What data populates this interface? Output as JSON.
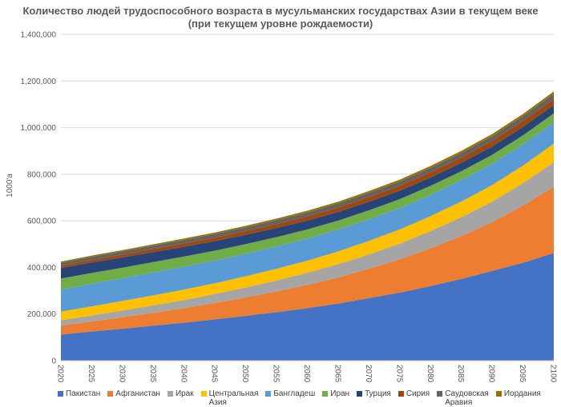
{
  "chart_data": {
    "type": "area",
    "stacked": true,
    "title": "Количество людей трудоспособного возраста в мусульманских государствах Азии в текущем веке",
    "subtitle": "(при текущем уровне рождаемости)",
    "xlabel": "",
    "ylabel": "1000'а",
    "ylim": [
      0,
      1400000
    ],
    "yticks": [
      "0",
      "200,000",
      "400,000",
      "600,000",
      "800,000",
      "1,000,000",
      "1,200,000",
      "1,400,000"
    ],
    "grid": true,
    "legend_position": "bottom",
    "x": [
      2020,
      2025,
      2030,
      2035,
      2040,
      2045,
      2050,
      2055,
      2060,
      2065,
      2070,
      2075,
      2080,
      2085,
      2090,
      2095,
      2100
    ],
    "series": [
      {
        "name": "Пакистан",
        "color": "#4472C4",
        "values": [
          112000,
          125000,
          137000,
          150000,
          163000,
          177000,
          192000,
          208000,
          225000,
          245000,
          268000,
          292000,
          320000,
          351000,
          385000,
          420000,
          462000
        ]
      },
      {
        "name": "Афганистан",
        "color": "#ED7D31",
        "values": [
          38000,
          43000,
          49000,
          55000,
          62000,
          70000,
          79000,
          89000,
          100000,
          112000,
          126000,
          143000,
          162000,
          184000,
          209000,
          246000,
          284000
        ]
      },
      {
        "name": "Ирак",
        "color": "#A5A5A5",
        "values": [
          23000,
          26000,
          29000,
          32000,
          35000,
          39000,
          43000,
          47000,
          52000,
          57000,
          62000,
          67000,
          74000,
          81000,
          88000,
          96000,
          105000
        ]
      },
      {
        "name": "Центральная Азия",
        "color": "#FFC000",
        "values": [
          37000,
          39000,
          41000,
          43000,
          45000,
          46000,
          48000,
          50000,
          52000,
          55000,
          58000,
          61000,
          64000,
          67000,
          71000,
          75000,
          80000
        ]
      },
      {
        "name": "Бангладеш",
        "color": "#5B9BD5",
        "values": [
          95000,
          97000,
          98000,
          99000,
          99000,
          98000,
          97000,
          96000,
          95000,
          94000,
          93000,
          92000,
          92000,
          92000,
          92000,
          92000,
          92000
        ]
      },
      {
        "name": "Иран",
        "color": "#70AD47",
        "values": [
          47000,
          46000,
          45000,
          44000,
          43000,
          42000,
          41000,
          40000,
          39000,
          38000,
          38000,
          38000,
          38000,
          38000,
          38000,
          38000,
          38000
        ]
      },
      {
        "name": "Турция",
        "color": "#264478",
        "values": [
          45000,
          45000,
          44000,
          43000,
          42000,
          41000,
          40000,
          39000,
          38000,
          37000,
          37000,
          36000,
          36000,
          36000,
          36000,
          36000,
          36000
        ]
      },
      {
        "name": "Сирия",
        "color": "#9E480E",
        "values": [
          10000,
          11000,
          12000,
          13000,
          14000,
          15000,
          16000,
          17000,
          18000,
          19000,
          20000,
          21000,
          22000,
          23000,
          24000,
          25000,
          26000
        ]
      },
      {
        "name": "Саудовская Аравия",
        "color": "#636363",
        "values": [
          13000,
          13500,
          14000,
          14500,
          15000,
          15500,
          16000,
          16500,
          17000,
          17500,
          18000,
          18500,
          19000,
          19500,
          20000,
          21000,
          22000
        ]
      },
      {
        "name": "Иордания",
        "color": "#997300",
        "values": [
          5000,
          5300,
          5600,
          5900,
          6200,
          6500,
          6800,
          7100,
          7400,
          7700,
          8000,
          8300,
          8600,
          8900,
          9200,
          9600,
          10000
        ]
      }
    ]
  }
}
